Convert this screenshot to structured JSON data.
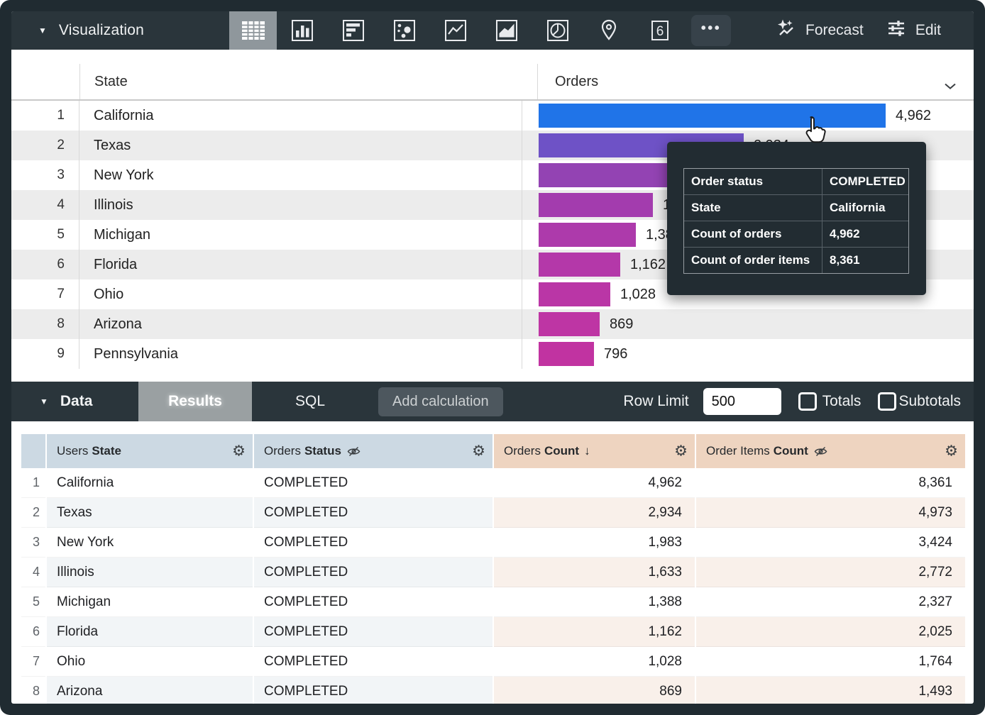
{
  "toolbar": {
    "title": "Visualization",
    "viz_types": [
      {
        "name": "table",
        "selected": true
      },
      {
        "name": "column-chart"
      },
      {
        "name": "bar-chart"
      },
      {
        "name": "scatter"
      },
      {
        "name": "line-chart"
      },
      {
        "name": "area-chart"
      },
      {
        "name": "pie-chart"
      },
      {
        "name": "map"
      },
      {
        "name": "single-value",
        "label": "6"
      },
      {
        "name": "more",
        "label": "•••"
      }
    ],
    "forecast_label": "Forecast",
    "edit_label": "Edit"
  },
  "viz_table": {
    "state_header": "State",
    "orders_header": "Orders",
    "max_value": 4962,
    "rows": [
      {
        "n": "1",
        "state": "California",
        "value": 4962,
        "label": "4,962",
        "color": "#2074e8"
      },
      {
        "n": "2",
        "state": "Texas",
        "value": 2934,
        "label": "2,934",
        "color": "#6e52c6"
      },
      {
        "n": "3",
        "state": "New York",
        "value": 1983,
        "label": "1,983",
        "color": "#9343b3"
      },
      {
        "n": "4",
        "state": "Illinois",
        "value": 1633,
        "label": "1,633",
        "color": "#a33cae"
      },
      {
        "n": "5",
        "state": "Michigan",
        "value": 1388,
        "label": "1,388",
        "color": "#ad3aab"
      },
      {
        "n": "6",
        "state": "Florida",
        "value": 1162,
        "label": "1,162",
        "color": "#b438a9"
      },
      {
        "n": "7",
        "state": "Ohio",
        "value": 1028,
        "label": "1,028",
        "color": "#ba36a6"
      },
      {
        "n": "8",
        "state": "Arizona",
        "value": 869,
        "label": "869",
        "color": "#be35a4"
      },
      {
        "n": "9",
        "state": "Pennsylvania",
        "value": 796,
        "label": "796",
        "color": "#c133a1"
      }
    ]
  },
  "tooltip": {
    "rows": [
      {
        "label": "Order status",
        "value": "COMPLETED"
      },
      {
        "label": "State",
        "value": "California"
      },
      {
        "label": "Count of orders",
        "value": "4,962"
      },
      {
        "label": "Count of order items",
        "value": "8,361"
      }
    ]
  },
  "data_panel": {
    "title": "Data",
    "results_tab": "Results",
    "sql_tab": "SQL",
    "add_calculation": "Add calculation",
    "row_limit_label": "Row Limit",
    "row_limit_value": "500",
    "totals_label": "Totals",
    "subtotals_label": "Subtotals"
  },
  "data_table": {
    "headers": [
      {
        "pre": "",
        "main": "",
        "type": "num"
      },
      {
        "pre": "Users",
        "main": "State",
        "type": "dim"
      },
      {
        "pre": "Orders",
        "main": "Status",
        "type": "dim",
        "hidden": true
      },
      {
        "pre": "Orders",
        "main": "Count",
        "type": "measure",
        "sort": "desc"
      },
      {
        "pre": "Order Items",
        "main": "Count",
        "type": "measure",
        "hidden": true
      }
    ],
    "rows": [
      [
        "1",
        "California",
        "COMPLETED",
        "4,962",
        "8,361"
      ],
      [
        "2",
        "Texas",
        "COMPLETED",
        "2,934",
        "4,973"
      ],
      [
        "3",
        "New York",
        "COMPLETED",
        "1,983",
        "3,424"
      ],
      [
        "4",
        "Illinois",
        "COMPLETED",
        "1,633",
        "2,772"
      ],
      [
        "5",
        "Michigan",
        "COMPLETED",
        "1,388",
        "2,327"
      ],
      [
        "6",
        "Florida",
        "COMPLETED",
        "1,162",
        "2,025"
      ],
      [
        "7",
        "Ohio",
        "COMPLETED",
        "1,028",
        "1,764"
      ],
      [
        "8",
        "Arizona",
        "COMPLETED",
        "869",
        "1,493"
      ]
    ]
  }
}
